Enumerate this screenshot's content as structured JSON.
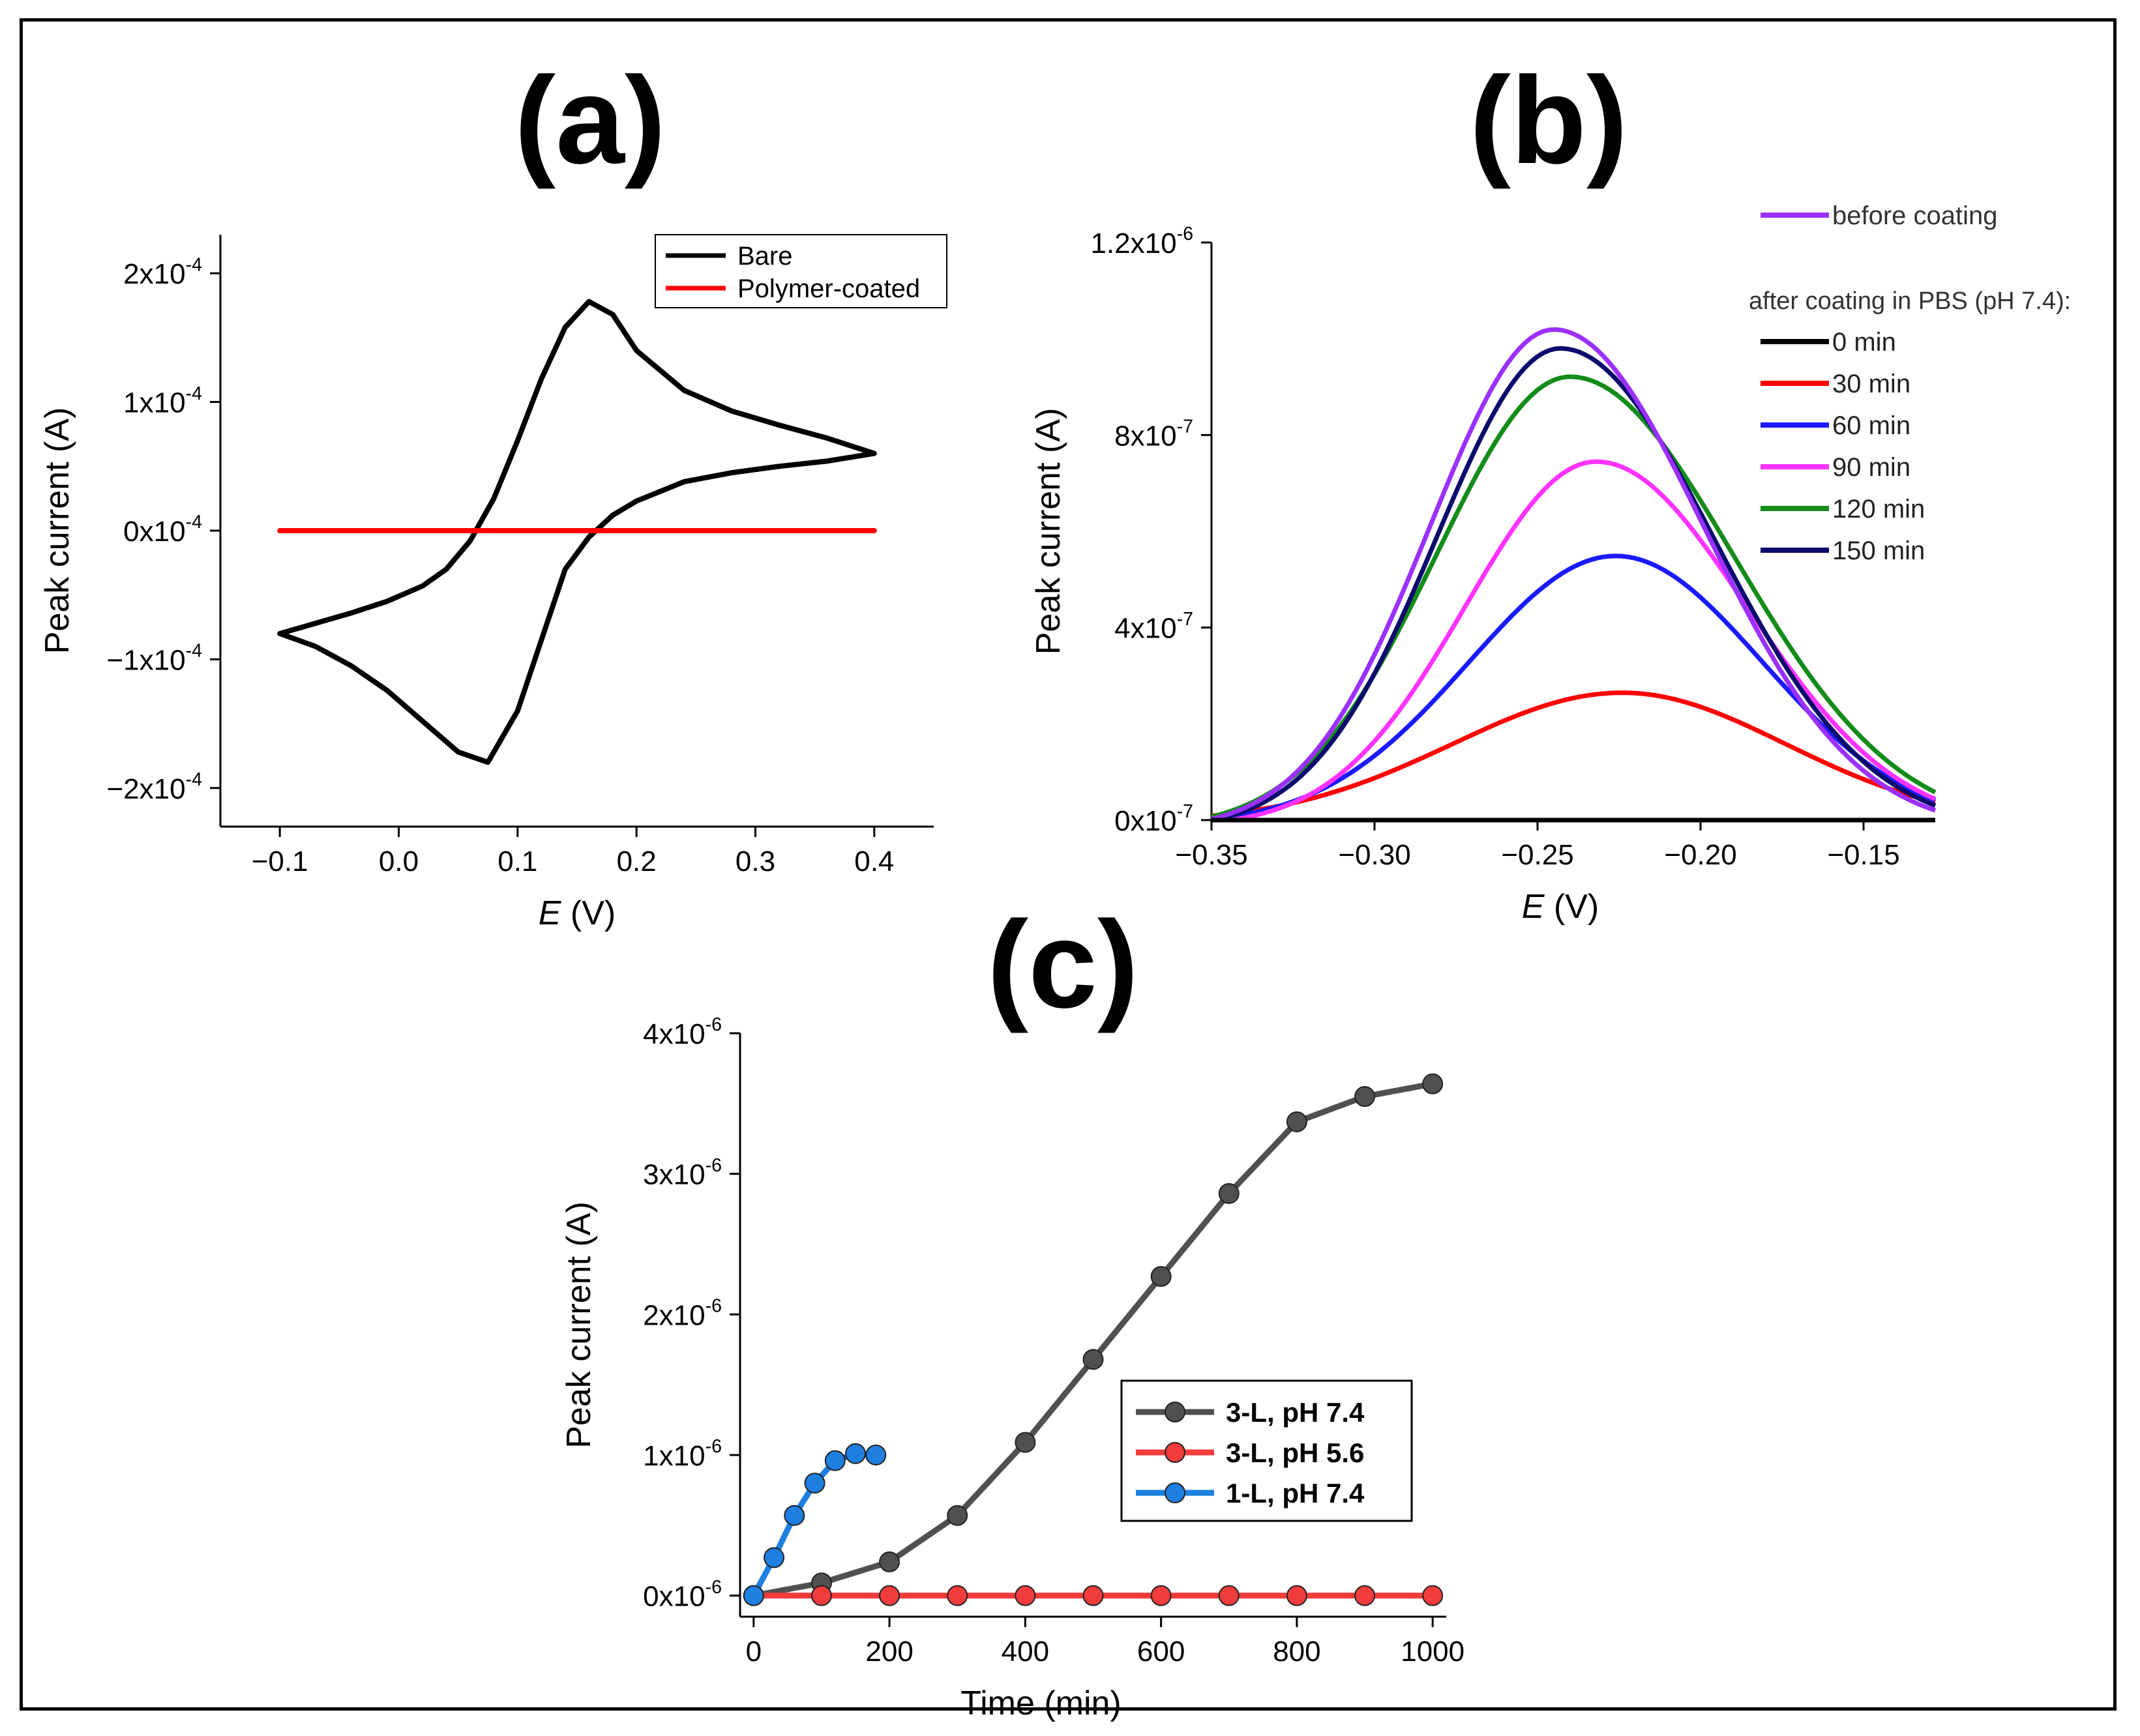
{
  "panels": [
    {
      "label": "(a)",
      "chart_data": {
        "type": "line",
        "xlabel_italic": "E",
        "xlabel_unit": " (V)",
        "ylabel": "Peak current (A)",
        "xlim": [
          -0.15,
          0.45
        ],
        "ylim": [
          -0.00023,
          0.00023
        ],
        "xticks": [
          -0.1,
          0.0,
          0.1,
          0.2,
          0.3,
          0.4
        ],
        "xtick_labels": [
          "−0.1",
          "0.0",
          "0.1",
          "0.2",
          "0.3",
          "0.4"
        ],
        "yticks": [
          0.0002,
          0.0001,
          0.0,
          -0.0001,
          -0.0002
        ],
        "ytick_mantissa": [
          "2x10",
          "1x10",
          "0x10",
          "−1x10",
          "−2x10"
        ],
        "ytick_exp": [
          "-4",
          "-4",
          "-4",
          "-4",
          "-4"
        ],
        "legend": [
          "Bare",
          "Polymer-coated"
        ],
        "series": [
          {
            "name": "Bare",
            "color": "#000000",
            "x": [
              -0.1,
              -0.07,
              -0.04,
              -0.01,
              0.02,
              0.04,
              0.06,
              0.08,
              0.1,
              0.12,
              0.14,
              0.16,
              0.18,
              0.2,
              0.24,
              0.28,
              0.32,
              0.36,
              0.4,
              0.36,
              0.32,
              0.28,
              0.24,
              0.2,
              0.18,
              0.16,
              0.14,
              0.12,
              0.1,
              0.075,
              0.05,
              0.02,
              -0.01,
              -0.04,
              -0.07,
              -0.1
            ],
            "y": [
              -8e-05,
              -7.2e-05,
              -6.4e-05,
              -5.5e-05,
              -4.3e-05,
              -3e-05,
              -8e-06,
              2.5e-05,
              7e-05,
              0.000118,
              0.000158,
              0.000178,
              0.000168,
              0.00014,
              0.000109,
              9.3e-05,
              8.2e-05,
              7.2e-05,
              6e-05,
              5.4e-05,
              5e-05,
              4.5e-05,
              3.8e-05,
              2.3e-05,
              1.2e-05,
              -5e-06,
              -3e-05,
              -8.5e-05,
              -0.00014,
              -0.00018,
              -0.000172,
              -0.000148,
              -0.000124,
              -0.000105,
              -9e-05,
              -8e-05
            ]
          },
          {
            "name": "Polymer-coated",
            "color": "#ff0000",
            "x": [
              -0.1,
              0.4
            ],
            "y": [
              0.0,
              0.0
            ]
          }
        ]
      }
    },
    {
      "label": "(b)",
      "chart_data": {
        "type": "line",
        "xlabel_italic": "E",
        "xlabel_unit": " (V)",
        "ylabel": "Peak current (A)",
        "xlim": [
          -0.35,
          -0.128
        ],
        "ylim": [
          0.0,
          1.2e-06
        ],
        "xticks": [
          -0.35,
          -0.3,
          -0.25,
          -0.2,
          -0.15
        ],
        "xtick_labels": [
          "−0.35",
          "−0.30",
          "−0.25",
          "−0.20",
          "−0.15"
        ],
        "yticks": [
          0.0,
          4e-07,
          8e-07,
          1.2e-06
        ],
        "ytick_mantissa": [
          "0x10",
          "4x10",
          "8x10",
          "1.2x10"
        ],
        "ytick_exp": [
          "-7",
          "-7",
          "-7",
          "-6"
        ],
        "legend_top": "before coating",
        "legend_header": "after coating in PBS (pH 7.4):",
        "legend": [
          "0 min",
          "30 min",
          "60 min",
          "90 min",
          "120 min",
          "150 min"
        ],
        "series": [
          {
            "name": "before coating",
            "color": "#9b30ff",
            "peak": 1.04e-06,
            "center": -0.245,
            "lsig": 0.038,
            "rsig": 0.046
          },
          {
            "name": "0 min",
            "color": "#000000",
            "peak": 0.0,
            "center": -0.24,
            "lsig": 0.04,
            "rsig": 0.04
          },
          {
            "name": "30 min",
            "color": "#ff0000",
            "peak": 2.7e-07,
            "center": -0.224,
            "lsig": 0.052,
            "rsig": 0.05
          },
          {
            "name": "60 min",
            "color": "#1a1aff",
            "peak": 5.6e-07,
            "center": -0.226,
            "lsig": 0.045,
            "rsig": 0.045
          },
          {
            "name": "90 min",
            "color": "#ff33ff",
            "peak": 7.6e-07,
            "center": -0.232,
            "lsig": 0.04,
            "rsig": 0.046
          },
          {
            "name": "120 min",
            "color": "#148c1a",
            "peak": 9.4e-07,
            "center": -0.24,
            "lsig": 0.041,
            "rsig": 0.05
          },
          {
            "name": "150 min",
            "color": "#0b0b6e",
            "peak": 1e-06,
            "center": -0.243,
            "lsig": 0.038,
            "rsig": 0.047
          }
        ]
      }
    },
    {
      "label": "(c)",
      "chart_data": {
        "type": "line",
        "xlabel": "Time (min)",
        "ylabel": "Peak current (A)",
        "xlim": [
          -20,
          1020
        ],
        "ylim": [
          -1.5e-07,
          4e-06
        ],
        "xticks": [
          0,
          200,
          400,
          600,
          800,
          1000
        ],
        "xtick_labels": [
          "0",
          "200",
          "400",
          "600",
          "800",
          "1000"
        ],
        "yticks": [
          0.0,
          1e-06,
          2e-06,
          3e-06,
          4e-06
        ],
        "ytick_mantissa": [
          "0x10",
          "1x10",
          "2x10",
          "3x10",
          "4x10"
        ],
        "ytick_exp": [
          "-6",
          "-6",
          "-6",
          "-6",
          "-6"
        ],
        "legend": [
          "3-L, pH 7.4",
          "3-L, pH 5.6",
          "1-L, pH 7.4"
        ],
        "series": [
          {
            "name": "3-L, pH 7.4",
            "color": "#505050",
            "x": [
              0,
              100,
              200,
              300,
              400,
              500,
              600,
              700,
              800,
              900,
              1000
            ],
            "y": [
              0.0,
              9e-08,
              2.4e-07,
              5.7e-07,
              1.09e-06,
              1.68e-06,
              2.27e-06,
              2.86e-06,
              3.37e-06,
              3.55e-06,
              3.64e-06
            ]
          },
          {
            "name": "3-L, pH 5.6",
            "color": "#f03c3c",
            "x": [
              0,
              100,
              200,
              300,
              400,
              500,
              600,
              700,
              800,
              900,
              1000
            ],
            "y": [
              0,
              0,
              0,
              0,
              0,
              0,
              0,
              0,
              0,
              0,
              0
            ]
          },
          {
            "name": "1-L, pH 7.4",
            "color": "#1e7fe0",
            "x": [
              0,
              30,
              60,
              90,
              120,
              150,
              180
            ],
            "y": [
              0.0,
              2.7e-07,
              5.7e-07,
              8e-07,
              9.6e-07,
              1.01e-06,
              1e-06
            ]
          }
        ]
      }
    }
  ]
}
